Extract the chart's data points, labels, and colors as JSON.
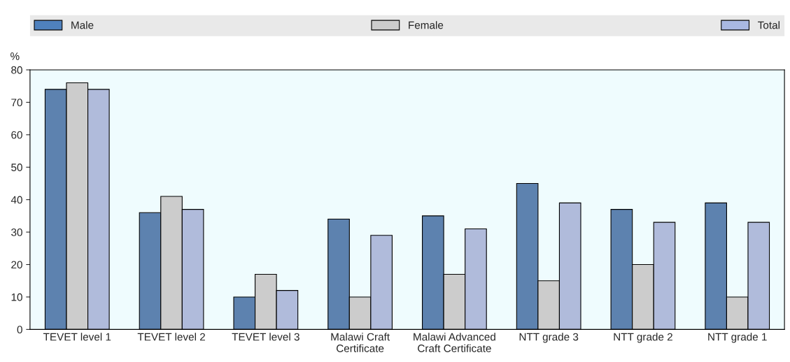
{
  "chart_data": {
    "type": "bar",
    "ylabel": "%",
    "categories": [
      "TEVET level 1",
      "TEVET level 2",
      "TEVET level 3",
      "Malawi Craft\nCertificate",
      "Malawi Advanced\nCraft Certificate",
      "NTT grade 3",
      "NTT grade 2",
      "NTT grade 1"
    ],
    "series": [
      {
        "name": "Male",
        "color": "#4f81bd",
        "values": [
          74,
          36,
          10,
          34,
          35,
          45,
          37,
          39
        ]
      },
      {
        "name": "Female",
        "color": "#cccccc",
        "values": [
          76,
          41,
          17,
          10,
          17,
          15,
          20,
          10
        ]
      },
      {
        "name": "Total",
        "color": "#a9b8e2",
        "values": [
          74,
          37,
          12,
          29,
          31,
          39,
          33,
          33
        ]
      }
    ],
    "ylim": [
      0,
      80
    ],
    "yticks": [
      0,
      10,
      20,
      30,
      40,
      50,
      60,
      70,
      80
    ],
    "grid": false,
    "legend": "top"
  }
}
